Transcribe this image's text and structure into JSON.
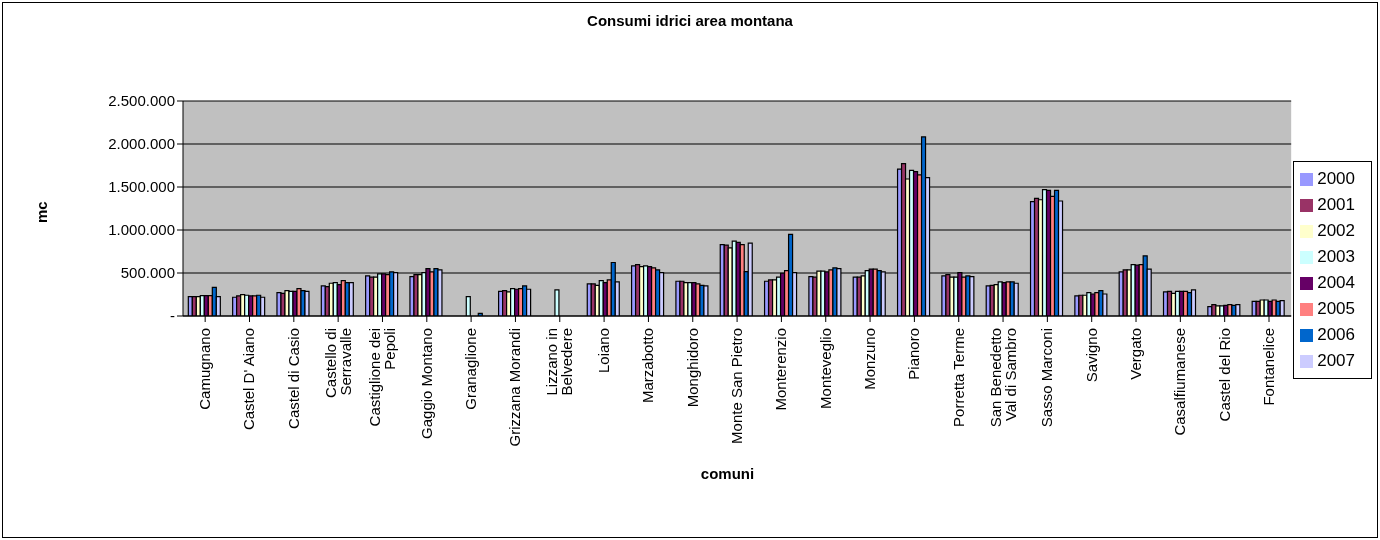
{
  "chart_data": {
    "type": "bar",
    "title": "Consumi idrici area montana",
    "xlabel": "comuni",
    "ylabel": "mc",
    "categories": [
      "Camugnano",
      "Castel D' Aiano",
      "Castel di Casio",
      "Castello di Serravalle",
      "Castiglione dei Pepoli",
      "Gaggio Montano",
      "Granaglione",
      "Grizzana Morandi",
      "Lizzano in Belvedere",
      "Loiano",
      "Marzabotto",
      "Monghidoro",
      "Monte San Pietro",
      "Monterenzio",
      "Monteveglio",
      "Monzuno",
      "Pianoro",
      "Porretta Terme",
      "San Benedetto Val di Sambro",
      "Sasso Marconi",
      "Savigno",
      "Vergato",
      "Casalfiumanese",
      "Castel del Rio",
      "Fontanelice"
    ],
    "series": [
      {
        "name": "2000",
        "color": "#9999ff",
        "values": [
          225000,
          218000,
          272000,
          350000,
          466000,
          458000,
          null,
          287000,
          null,
          373000,
          583000,
          404000,
          831000,
          404000,
          458000,
          451000,
          1709000,
          466000,
          350000,
          1329000,
          233000,
          513000,
          280000,
          109000,
          171000
        ]
      },
      {
        "name": "2001",
        "color": "#993366",
        "values": [
          225000,
          233000,
          264000,
          342000,
          451000,
          482000,
          null,
          295000,
          null,
          373000,
          598000,
          404000,
          824000,
          420000,
          451000,
          451000,
          1772000,
          482000,
          357000,
          1368000,
          241000,
          536000,
          287000,
          132000,
          171000
        ]
      },
      {
        "name": "2002",
        "color": "#ffffcc",
        "values": [
          225000,
          249000,
          295000,
          381000,
          451000,
          482000,
          null,
          280000,
          null,
          357000,
          575000,
          389000,
          793000,
          420000,
          521000,
          466000,
          1593000,
          451000,
          365000,
          1352000,
          241000,
          536000,
          264000,
          117000,
          186000
        ]
      },
      {
        "name": "2003",
        "color": "#ccffff",
        "values": [
          237000,
          241000,
          287000,
          389000,
          490000,
          505000,
          225000,
          319000,
          303000,
          412000,
          583000,
          389000,
          870000,
          451000,
          521000,
          528000,
          1694000,
          451000,
          396000,
          1469000,
          272000,
          598000,
          287000,
          117000,
          186000
        ]
      },
      {
        "name": "2004",
        "color": "#660066",
        "values": [
          237000,
          233000,
          287000,
          365000,
          490000,
          552000,
          null,
          311000,
          null,
          389000,
          575000,
          389000,
          855000,
          497000,
          513000,
          544000,
          1678000,
          505000,
          389000,
          1461000,
          256000,
          591000,
          287000,
          124000,
          171000
        ]
      },
      {
        "name": "2005",
        "color": "#ff8080",
        "values": [
          237000,
          233000,
          319000,
          412000,
          482000,
          513000,
          null,
          319000,
          null,
          420000,
          559000,
          373000,
          831000,
          528000,
          536000,
          544000,
          1640000,
          451000,
          396000,
          1391000,
          272000,
          598000,
          287000,
          132000,
          186000
        ]
      },
      {
        "name": "2006",
        "color": "#0066cc",
        "values": [
          334000,
          241000,
          295000,
          389000,
          513000,
          552000,
          30000,
          350000,
          null,
          622000,
          536000,
          357000,
          517000,
          948000,
          559000,
          528000,
          2082000,
          466000,
          396000,
          1461000,
          295000,
          699000,
          272000,
          124000,
          171000
        ]
      },
      {
        "name": "2007",
        "color": "#ccccff",
        "values": [
          225000,
          218000,
          287000,
          389000,
          505000,
          536000,
          null,
          311000,
          null,
          396000,
          505000,
          350000,
          847000,
          505000,
          552000,
          513000,
          1608000,
          458000,
          381000,
          1337000,
          256000,
          544000,
          303000,
          132000,
          179000
        ]
      }
    ],
    "ylim": [
      0,
      2500000
    ],
    "yticks": [
      {
        "value": 0,
        "label": "-"
      },
      {
        "value": 500000,
        "label": "500.000"
      },
      {
        "value": 1000000,
        "label": "1.000.000"
      },
      {
        "value": 1500000,
        "label": "1.500.000"
      },
      {
        "value": 2000000,
        "label": "2.000.000"
      },
      {
        "value": 2500000,
        "label": "2.500.000"
      }
    ],
    "grid": "y",
    "legend": "right"
  }
}
